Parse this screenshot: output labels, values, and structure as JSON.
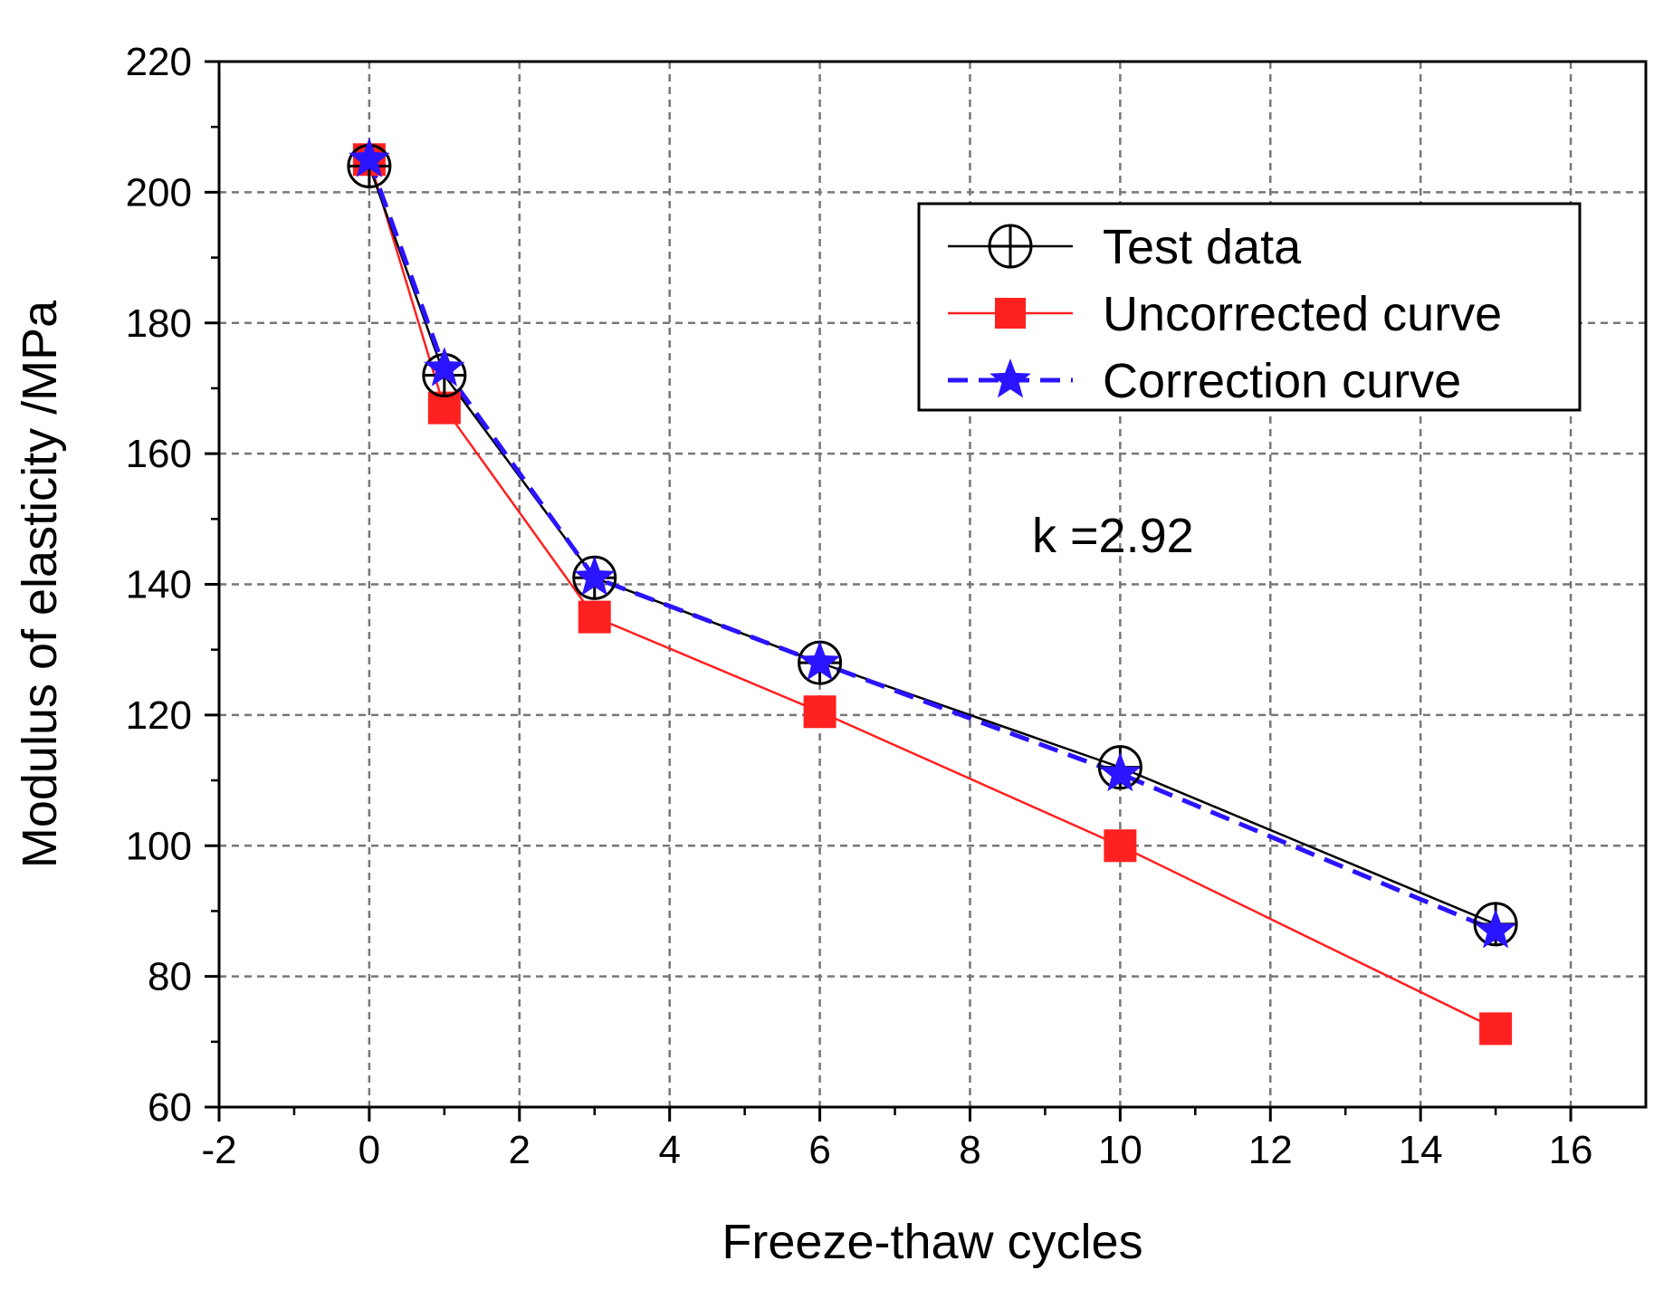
{
  "chart_data": {
    "type": "line",
    "xlabel": "Freeze-thaw cycles",
    "ylabel": "Modulus of elasticity /MPa",
    "xlim": [
      -2,
      17
    ],
    "ylim": [
      60,
      220
    ],
    "xticks": [
      -2,
      0,
      2,
      4,
      6,
      8,
      10,
      12,
      14,
      16
    ],
    "yticks": [
      60,
      80,
      100,
      120,
      140,
      160,
      180,
      200,
      220
    ],
    "grid": true,
    "legend_position": "top-right",
    "annotation": "k =2.92",
    "series": [
      {
        "name": "Test data",
        "color": "#000000",
        "marker": "circle-plus",
        "line_style": "solid",
        "x": [
          0,
          1,
          3,
          6,
          10,
          15
        ],
        "y": [
          204,
          172,
          141,
          128,
          112,
          88
        ]
      },
      {
        "name": "Uncorrected curve",
        "color": "#ff2020",
        "marker": "square",
        "line_style": "solid",
        "x": [
          0,
          1,
          3,
          6,
          10,
          15
        ],
        "y": [
          205,
          167,
          135,
          120.5,
          100,
          72
        ]
      },
      {
        "name": "Correction curve",
        "color": "#2b14ff",
        "marker": "star",
        "line_style": "dashed",
        "x": [
          0,
          1,
          3,
          6,
          10,
          15
        ],
        "y": [
          205,
          173,
          141,
          128,
          111,
          87
        ]
      }
    ]
  }
}
